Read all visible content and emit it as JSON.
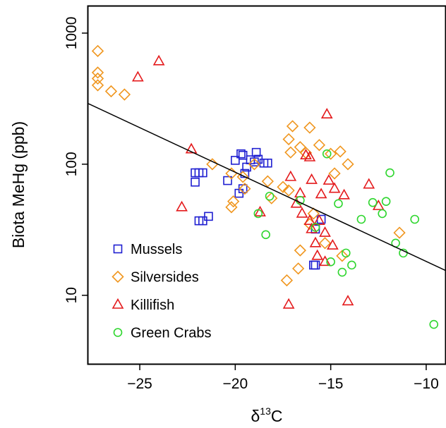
{
  "chart_data": {
    "type": "scatter",
    "xlabel": {
      "symbol": "δ",
      "superscript": "13",
      "element": "C"
    },
    "ylabel": "Biota MeHg (ppb)",
    "xlim": [
      -27.7,
      -9.0
    ],
    "ylim": [
      3.0,
      1600
    ],
    "x_ticks": [
      -25,
      -20,
      -15,
      -10
    ],
    "x_tick_labels": [
      "−25",
      "−20",
      "−15",
      "−10"
    ],
    "y_scale": "log",
    "y_ticks": [
      10,
      100,
      1000
    ],
    "y_tick_labels": [
      "10",
      "100",
      "1000"
    ],
    "legend_position": "bottom-left",
    "trendline": {
      "x": [
        -27.7,
        -9.0
      ],
      "y": [
        290,
        15.5
      ]
    },
    "series": [
      {
        "name": "Mussels",
        "marker": "square",
        "color": "#1f1fd1",
        "points": [
          [
            -22.1,
            73
          ],
          [
            -22.1,
            86
          ],
          [
            -21.9,
            86
          ],
          [
            -21.7,
            86
          ],
          [
            -21.9,
            37
          ],
          [
            -21.7,
            37
          ],
          [
            -21.4,
            40
          ],
          [
            -20.4,
            75
          ],
          [
            -20.0,
            107
          ],
          [
            -19.8,
            60
          ],
          [
            -19.7,
            120
          ],
          [
            -19.6,
            117
          ],
          [
            -19.5,
            85
          ],
          [
            -19.4,
            95
          ],
          [
            -19.2,
            108
          ],
          [
            -19.0,
            104
          ],
          [
            -18.9,
            123
          ],
          [
            -18.8,
            109
          ],
          [
            -18.5,
            102
          ],
          [
            -18.3,
            102
          ],
          [
            -19.6,
            65
          ],
          [
            -15.8,
            32
          ],
          [
            -15.5,
            38
          ],
          [
            -15.8,
            17
          ],
          [
            -15.9,
            17
          ]
        ]
      },
      {
        "name": "Silversides",
        "marker": "diamond",
        "color": "#f0961e",
        "points": [
          [
            -27.2,
            730
          ],
          [
            -27.2,
            500
          ],
          [
            -27.2,
            450
          ],
          [
            -27.2,
            400
          ],
          [
            -26.5,
            360
          ],
          [
            -25.8,
            340
          ],
          [
            -21.2,
            100
          ],
          [
            -20.2,
            47
          ],
          [
            -20.1,
            52
          ],
          [
            -20.2,
            85
          ],
          [
            -19.6,
            80
          ],
          [
            -19.5,
            65
          ],
          [
            -19.0,
            100
          ],
          [
            -18.3,
            74
          ],
          [
            -18.1,
            55
          ],
          [
            -17.5,
            67
          ],
          [
            -17.2,
            155
          ],
          [
            -17.0,
            195
          ],
          [
            -16.6,
            135
          ],
          [
            -16.3,
            122
          ],
          [
            -16.1,
            190
          ],
          [
            -15.6,
            140
          ],
          [
            -15.0,
            120
          ],
          [
            -14.8,
            85
          ],
          [
            -14.5,
            125
          ],
          [
            -14.1,
            100
          ],
          [
            -17.1,
            123
          ],
          [
            -17.3,
            13
          ],
          [
            -16.7,
            16
          ],
          [
            -15.9,
            42
          ],
          [
            -16.1,
            35
          ],
          [
            -15.3,
            25
          ],
          [
            -14.4,
            20
          ],
          [
            -11.4,
            30
          ],
          [
            -16.6,
            22
          ],
          [
            -17.2,
            63
          ]
        ]
      },
      {
        "name": "Killifish",
        "marker": "triangle",
        "color": "#e41a1c",
        "points": [
          [
            -25.1,
            460
          ],
          [
            -24.0,
            610
          ],
          [
            -22.3,
            130
          ],
          [
            -22.8,
            47
          ],
          [
            -18.7,
            43
          ],
          [
            -17.2,
            8.5
          ],
          [
            -17.1,
            80
          ],
          [
            -16.8,
            50
          ],
          [
            -16.5,
            42
          ],
          [
            -16.3,
            117
          ],
          [
            -16.1,
            113
          ],
          [
            -16.0,
            76
          ],
          [
            -16.0,
            32
          ],
          [
            -15.8,
            25
          ],
          [
            -15.6,
            37
          ],
          [
            -15.5,
            59
          ],
          [
            -15.3,
            30
          ],
          [
            -15.2,
            240
          ],
          [
            -15.1,
            75
          ],
          [
            -14.8,
            65
          ],
          [
            -14.3,
            58
          ],
          [
            -14.1,
            9
          ],
          [
            -14.9,
            24
          ],
          [
            -15.3,
            18
          ],
          [
            -13.0,
            70
          ],
          [
            -12.5,
            48
          ],
          [
            -16.6,
            60
          ],
          [
            -16.1,
            37
          ],
          [
            -15.7,
            20
          ]
        ]
      },
      {
        "name": "Green Crabs",
        "marker": "circle",
        "color": "#2ed62e",
        "points": [
          [
            -18.8,
            42
          ],
          [
            -18.4,
            29
          ],
          [
            -18.2,
            57
          ],
          [
            -16.6,
            53
          ],
          [
            -15.2,
            120
          ],
          [
            -14.6,
            50
          ],
          [
            -13.9,
            17
          ],
          [
            -13.4,
            38
          ],
          [
            -12.8,
            51
          ],
          [
            -12.1,
            52
          ],
          [
            -11.9,
            86
          ],
          [
            -12.3,
            42
          ],
          [
            -11.6,
            25
          ],
          [
            -11.2,
            21
          ],
          [
            -10.6,
            38
          ],
          [
            -9.6,
            6
          ],
          [
            -14.4,
            15
          ],
          [
            -15.0,
            18
          ],
          [
            -14.2,
            21
          ],
          [
            -15.8,
            33
          ]
        ]
      }
    ]
  }
}
